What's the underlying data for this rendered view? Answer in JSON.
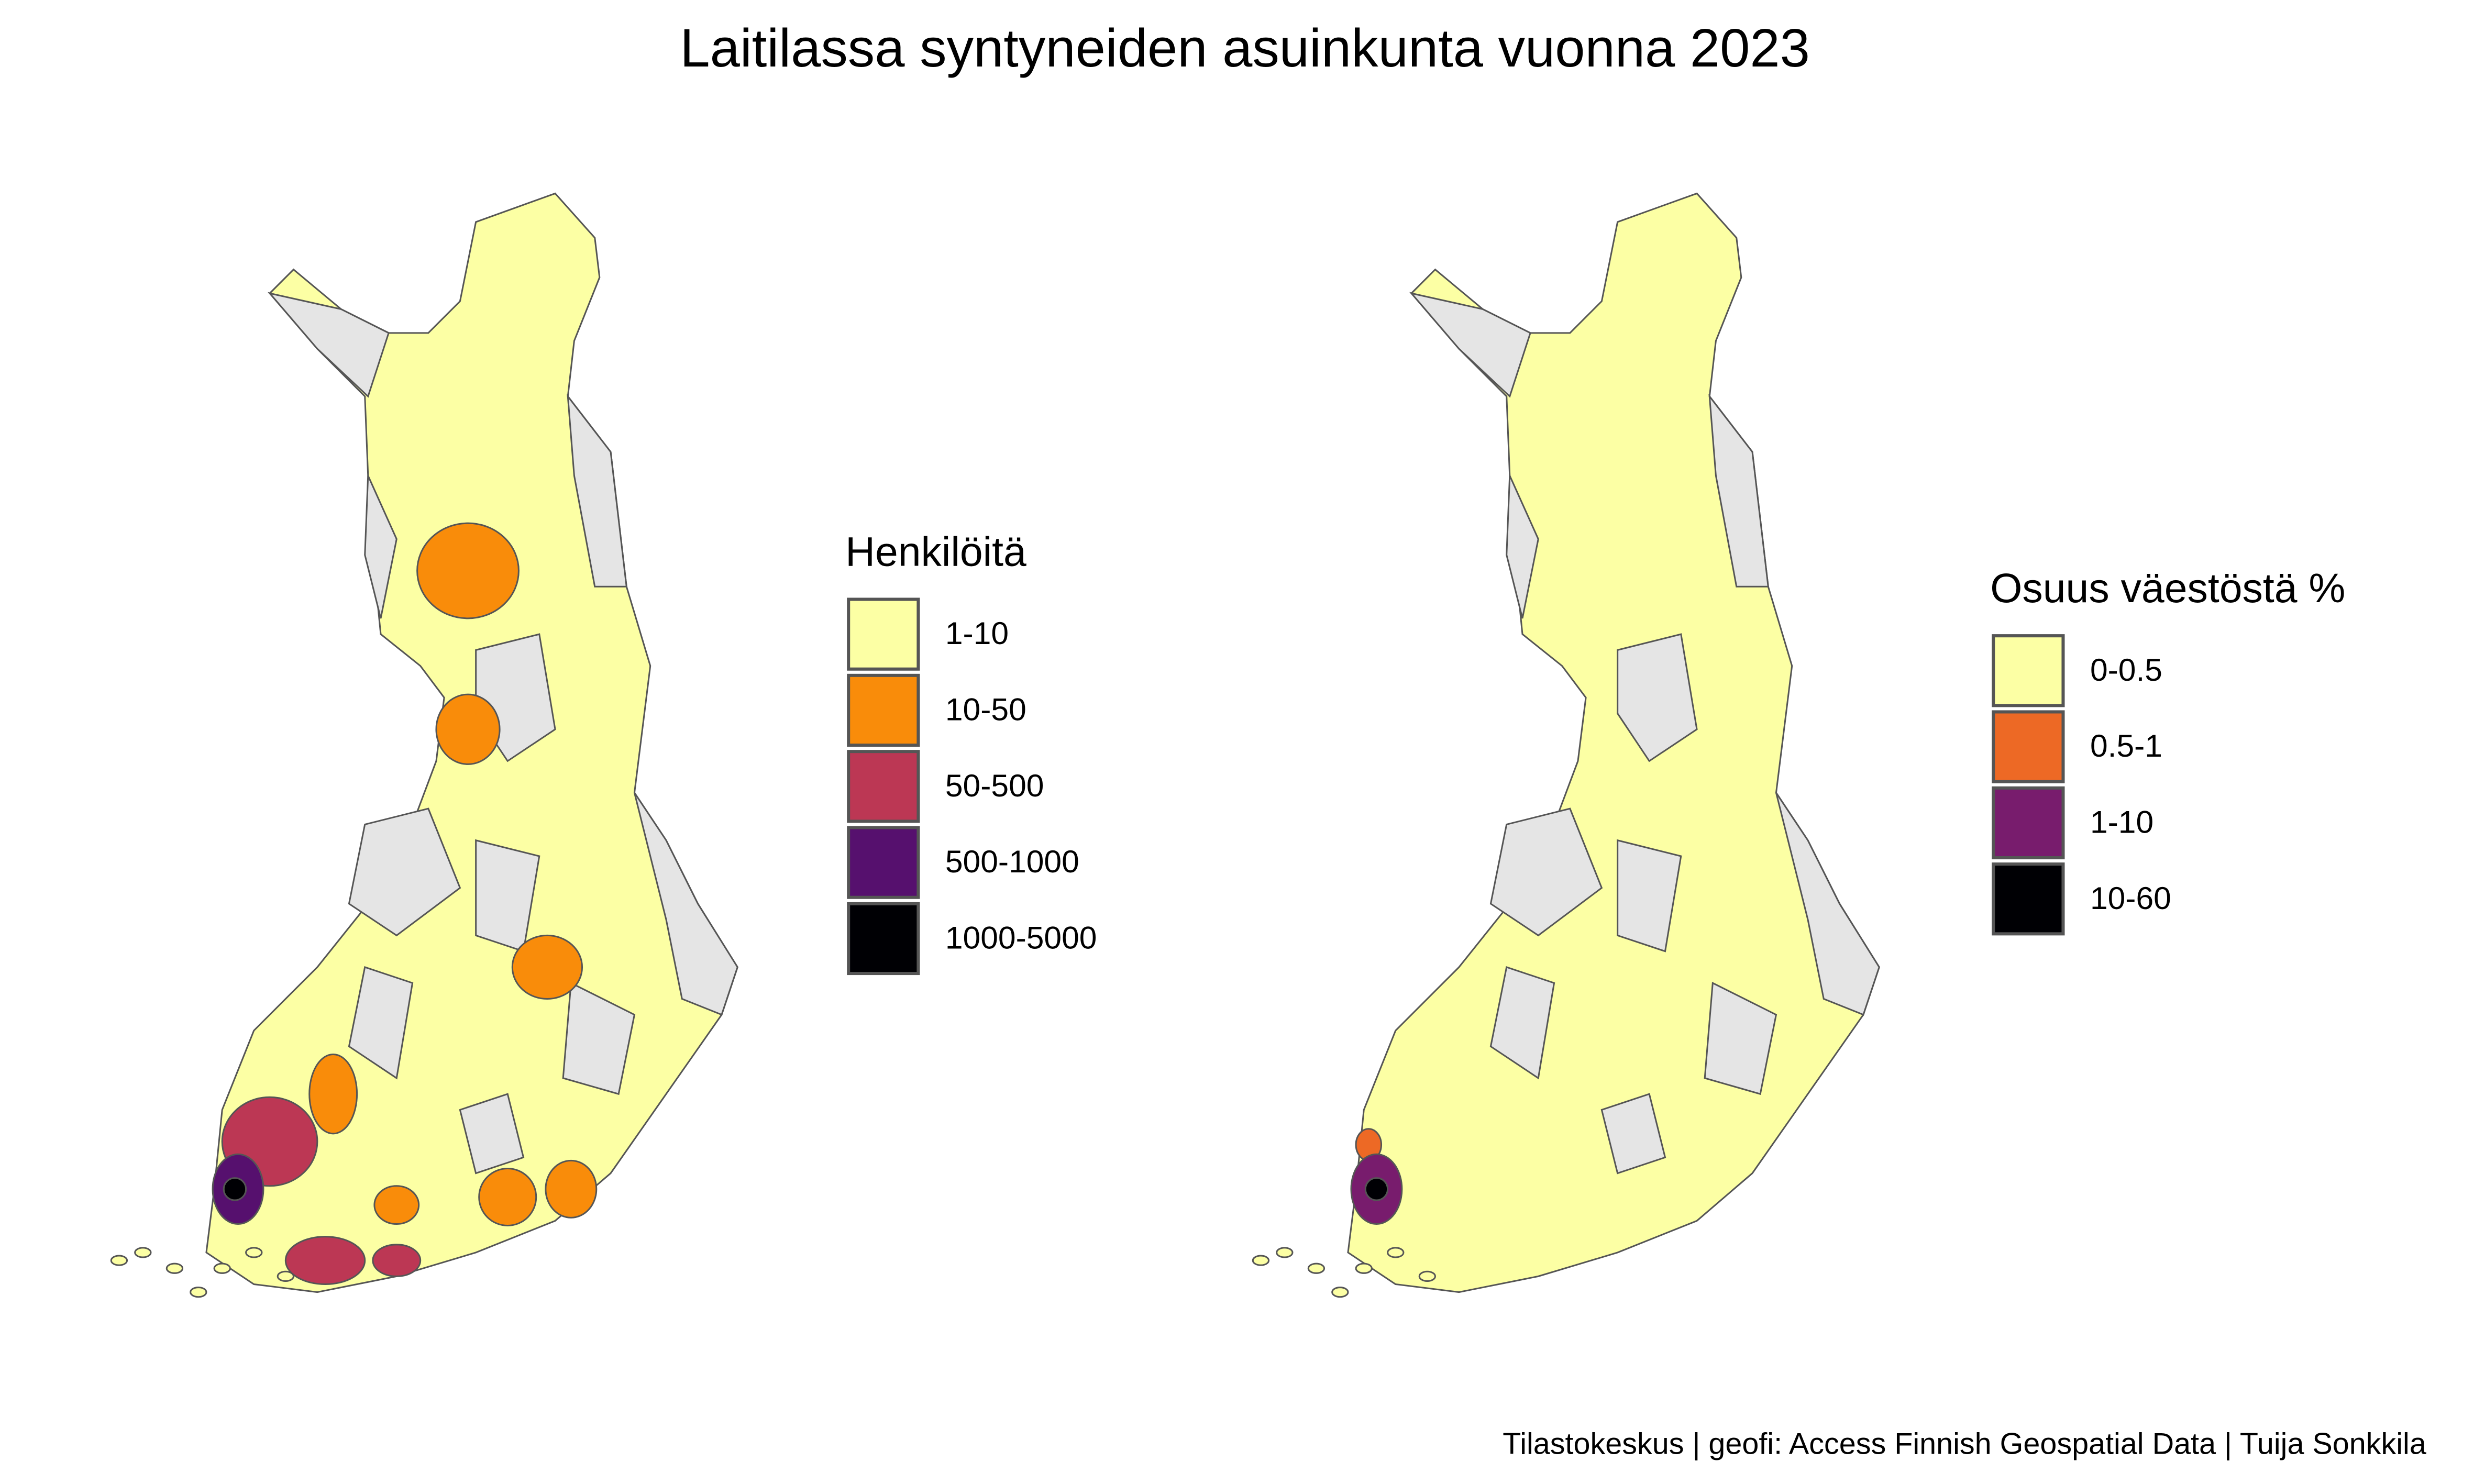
{
  "title": "Laitilassa syntyneiden asuinkunta vuonna 2023",
  "maps": [
    {
      "legend": {
        "title": "Henkilöitä",
        "items": [
          {
            "label": "1-10",
            "color": "#fcffa4"
          },
          {
            "label": "10-50",
            "color": "#f98c0a"
          },
          {
            "label": "50-500",
            "color": "#bc3754"
          },
          {
            "label": "500-1000",
            "color": "#56106e"
          },
          {
            "label": "1000-5000",
            "color": "#000004"
          }
        ]
      }
    },
    {
      "legend": {
        "title": "Osuus väestöstä %",
        "items": [
          {
            "label": "0-0.5",
            "color": "#fcffa4"
          },
          {
            "label": "0.5-1",
            "color": "#ed6925"
          },
          {
            "label": "1-10",
            "color": "#781c6d"
          },
          {
            "label": "10-60",
            "color": "#000004"
          }
        ]
      }
    }
  ],
  "caption": "Tilastokeskus | geofi: Access Finnish Geospatial Data | Tuija Sonkkila"
}
